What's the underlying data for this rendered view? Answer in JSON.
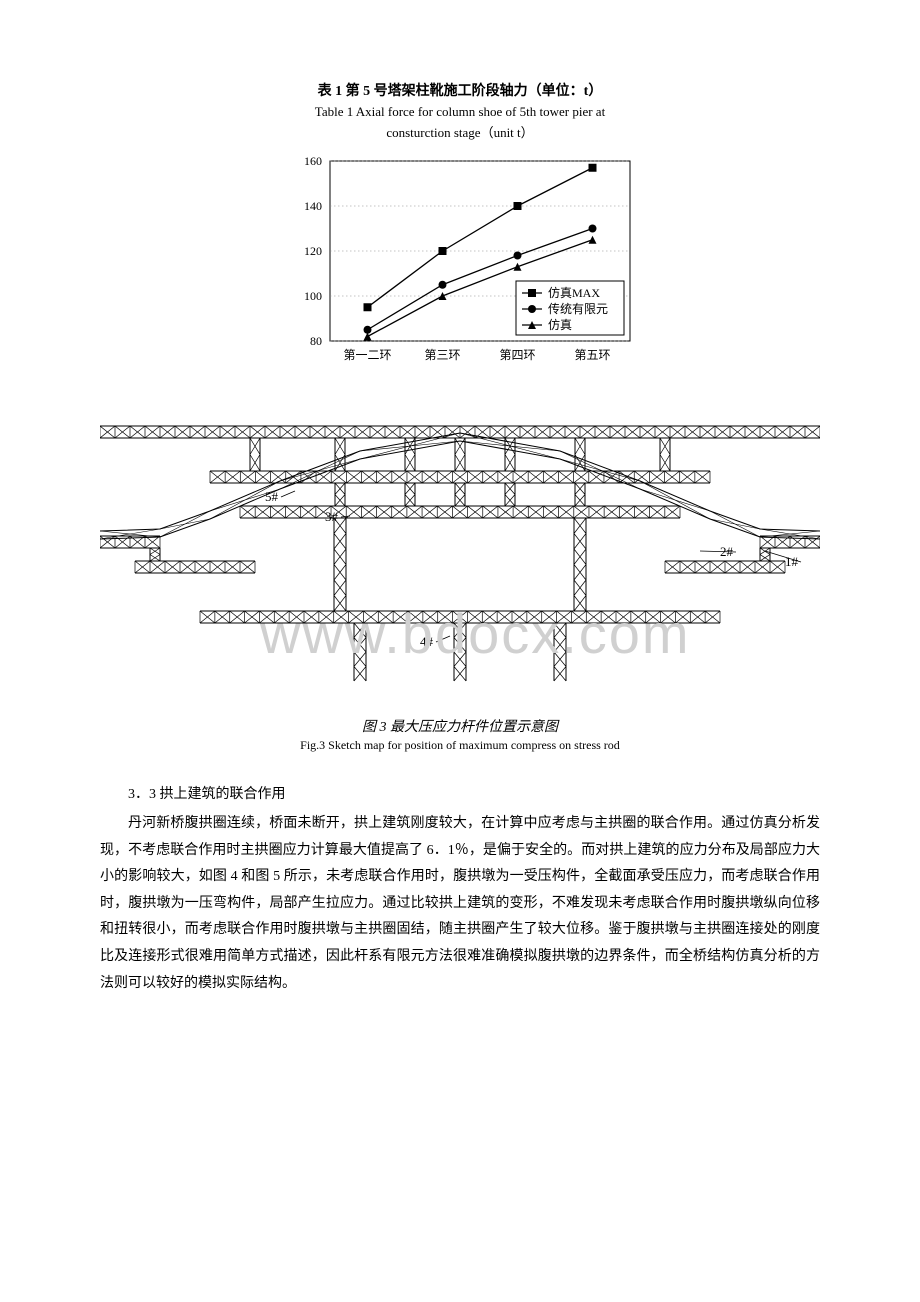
{
  "table1": {
    "title_cn": "表 1  第 5 号塔架柱靴施工阶段轴力（单位：t）",
    "title_en_line1": "Table 1   Axial force for column shoe of 5th tower pier at",
    "title_en_line2": "consturction stage（unit t）",
    "chart": {
      "type": "line",
      "background_color": "#ffffff",
      "grid_color": "#888888",
      "border_color": "#000000",
      "ylim": [
        80,
        160
      ],
      "ytick_step": 20,
      "yticks": [
        80,
        100,
        120,
        140,
        160
      ],
      "categories": [
        "第一二环",
        "第三环",
        "第四环",
        "第五环"
      ],
      "series": [
        {
          "name": "仿真MAX",
          "marker": "square",
          "color": "#000000",
          "values": [
            95,
            120,
            140,
            157
          ]
        },
        {
          "name": "传统有限元",
          "marker": "circle",
          "color": "#000000",
          "values": [
            85,
            105,
            118,
            130
          ]
        },
        {
          "name": "仿真",
          "marker": "triangle",
          "color": "#000000",
          "values": [
            82,
            100,
            113,
            125
          ]
        }
      ],
      "legend_position": "bottom-right",
      "tick_fontsize": 12,
      "legend_fontsize": 12
    }
  },
  "figure3": {
    "type": "diagram",
    "caption_cn": "图 3  最大压应力杆件位置示意图",
    "caption_en": "Fig.3  Sketch map for position of maximum compress on stress rod",
    "labels": [
      "1#",
      "2#",
      "3#",
      "4#",
      "5#"
    ],
    "line_color": "#000000",
    "background_color": "#ffffff",
    "watermark": "www.bdocx.com",
    "watermark_color": "#d0d0d0"
  },
  "section": {
    "heading": "3．3  拱上建筑的联合作用",
    "body": "丹河新桥腹拱圈连续，桥面未断开，拱上建筑刚度较大，在计算中应考虑与主拱圈的联合作用。通过仿真分析发现，不考虑联合作用时主拱圈应力计算最大值提高了 6．1％，是偏于安全的。而对拱上建筑的应力分布及局部应力大小的影响较大，如图 4 和图 5 所示，未考虑联合作用时，腹拱墩为一受压构件，全截面承受压应力，而考虑联合作用时，腹拱墩为一压弯构件，局部产生拉应力。通过比较拱上建筑的变形，不难发现未考虑联合作用时腹拱墩纵向位移和扭转很小，而考虑联合作用时腹拱墩与主拱圈固结，随主拱圈产生了较大位移。鉴于腹拱墩与主拱圈连接处的刚度比及连接形式很难用简单方式描述，因此杆系有限元方法很难准确模拟腹拱墩的边界条件，而全桥结构仿真分析的方法则可以较好的模拟实际结构。"
  }
}
